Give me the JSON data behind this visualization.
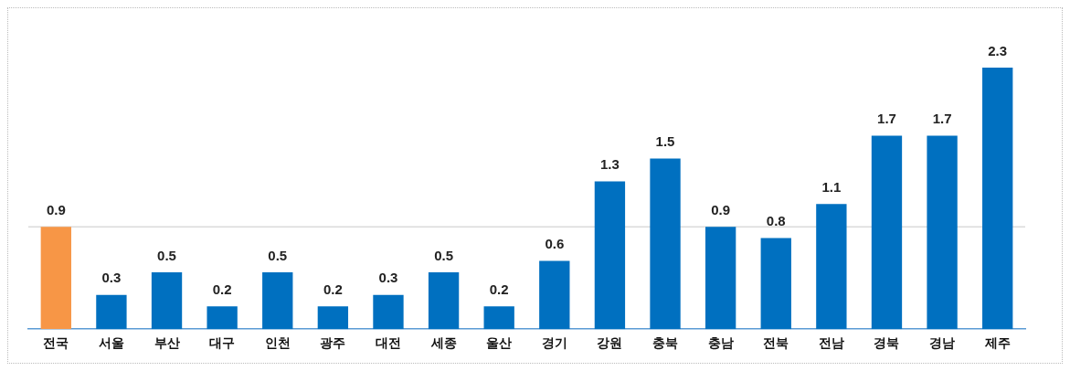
{
  "chart_data": {
    "type": "bar",
    "categories": [
      "전국",
      "서울",
      "부산",
      "대구",
      "인천",
      "광주",
      "대전",
      "세종",
      "울산",
      "경기",
      "강원",
      "충북",
      "충남",
      "전북",
      "전남",
      "경북",
      "경남",
      "제주"
    ],
    "values": [
      0.9,
      0.3,
      0.5,
      0.2,
      0.5,
      0.2,
      0.3,
      0.5,
      0.2,
      0.6,
      1.3,
      1.5,
      0.9,
      0.8,
      1.1,
      1.7,
      1.7,
      2.3
    ],
    "colors": [
      "#f79646",
      "#0070c0",
      "#0070c0",
      "#0070c0",
      "#0070c0",
      "#0070c0",
      "#0070c0",
      "#0070c0",
      "#0070c0",
      "#0070c0",
      "#0070c0",
      "#0070c0",
      "#0070c0",
      "#0070c0",
      "#0070c0",
      "#0070c0",
      "#0070c0",
      "#0070c0"
    ],
    "data_labels": true,
    "grid": false,
    "legend": false,
    "ref_lines": [
      {
        "axis": "y",
        "value": 0.9,
        "color": "#c8c8c8"
      }
    ]
  }
}
